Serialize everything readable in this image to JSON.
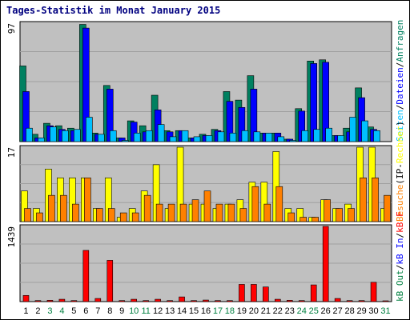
{
  "page": {
    "title": "Tages-Statistik im Monat January 2015"
  },
  "colors": {
    "background": "#ffffff",
    "plot_bg": "#c0c0c0",
    "grid": "#a0a0a0",
    "weekend_label": "#008040",
    "weekday_label": "#000000",
    "anfragen": "#008060",
    "dateien": "#0000ff",
    "seiten": "#00c0ff",
    "rechner": "#ffff00",
    "besuche": "#ff8000",
    "kb_f": "#ff0000",
    "kb_in": "#0000ff",
    "kb_out": "#008040"
  },
  "chart_data": [
    {
      "type": "bar",
      "panel": "top",
      "ymax_label": "97",
      "ylim": [
        0,
        97
      ],
      "grid": true,
      "x": [
        "1",
        "2",
        "3",
        "4",
        "5",
        "6",
        "7",
        "8",
        "9",
        "10",
        "11",
        "12",
        "13",
        "14",
        "15",
        "16",
        "17",
        "18",
        "19",
        "20",
        "21",
        "22",
        "23",
        "24",
        "25",
        "26",
        "27",
        "28",
        "29",
        "30",
        "31"
      ],
      "weekend_days": [
        "3",
        "4",
        "10",
        "11",
        "17",
        "18",
        "24",
        "25",
        "31"
      ],
      "legend": [
        {
          "text": "Anfragen",
          "color_key": "anfragen"
        },
        {
          "text": "Dateien",
          "color_key": "dateien"
        },
        {
          "text": "Seiten",
          "color_key": "seiten"
        }
      ],
      "legend_separator": "/",
      "series": [
        {
          "name": "Anfragen",
          "color_key": "anfragen",
          "values": [
            62,
            6,
            15,
            13,
            11,
            96,
            7,
            46,
            3,
            17,
            13,
            38,
            9,
            9,
            3,
            6,
            10,
            41,
            34,
            54,
            7,
            7,
            2,
            27,
            66,
            67,
            5,
            11,
            44,
            12,
            0
          ]
        },
        {
          "name": "Dateien",
          "color_key": "dateien",
          "values": [
            41,
            3,
            13,
            10,
            9,
            93,
            6,
            43,
            3,
            16,
            8,
            26,
            8,
            9,
            3,
            5,
            9,
            33,
            28,
            43,
            7,
            7,
            2,
            25,
            64,
            65,
            5,
            8,
            36,
            10,
            0
          ]
        },
        {
          "name": "Seiten",
          "color_key": "seiten",
          "values": [
            11,
            3,
            12,
            9,
            10,
            20,
            6,
            9,
            1,
            7,
            9,
            14,
            4,
            9,
            4,
            5,
            8,
            7,
            9,
            8,
            7,
            4,
            1,
            9,
            10,
            11,
            5,
            20,
            17,
            9,
            0
          ]
        }
      ]
    },
    {
      "type": "bar",
      "panel": "middle",
      "ymax_label": "17",
      "ylim": [
        0,
        17
      ],
      "grid": true,
      "legend": [
        {
          "text": "Rechner",
          "color_key": "rechner"
        },
        {
          "text": "Besuche",
          "color_key": "besuche"
        }
      ],
      "legend_separator": "(IP-",
      "legend_suffix": ")",
      "series": [
        {
          "name": "Rechner",
          "color_key": "rechner",
          "values": [
            7,
            3,
            12,
            10,
            10,
            10,
            3,
            10,
            1,
            3,
            7,
            13,
            3,
            17,
            4,
            4,
            3,
            4,
            5,
            9,
            9,
            16,
            3,
            3,
            1,
            5,
            3,
            4,
            17,
            17,
            3
          ]
        },
        {
          "name": "Besuche",
          "color_key": "besuche",
          "values": [
            3,
            2,
            6,
            6,
            4,
            10,
            3,
            3,
            2,
            2,
            6,
            4,
            4,
            4,
            5,
            7,
            4,
            4,
            3,
            8,
            4,
            8,
            2,
            1,
            1,
            5,
            3,
            3,
            10,
            10,
            6
          ]
        }
      ]
    },
    {
      "type": "bar",
      "panel": "bottom",
      "ymax_label": "1439",
      "ylim": [
        0,
        1439
      ],
      "grid": true,
      "legend": [
        {
          "text": "kB F",
          "color_key": "kb_f"
        },
        {
          "text": "kB In",
          "color_key": "kb_in"
        },
        {
          "text": "kB Out",
          "color_key": "kb_out"
        }
      ],
      "legend_separator": "/",
      "series": [
        {
          "name": "kB F",
          "color_key": "kb_f",
          "values": [
            118,
            20,
            25,
            45,
            20,
            980,
            60,
            790,
            20,
            45,
            20,
            45,
            20,
            90,
            20,
            30,
            20,
            20,
            330,
            330,
            280,
            45,
            25,
            20,
            320,
            1439,
            60,
            20,
            20,
            370,
            10
          ]
        }
      ]
    }
  ]
}
